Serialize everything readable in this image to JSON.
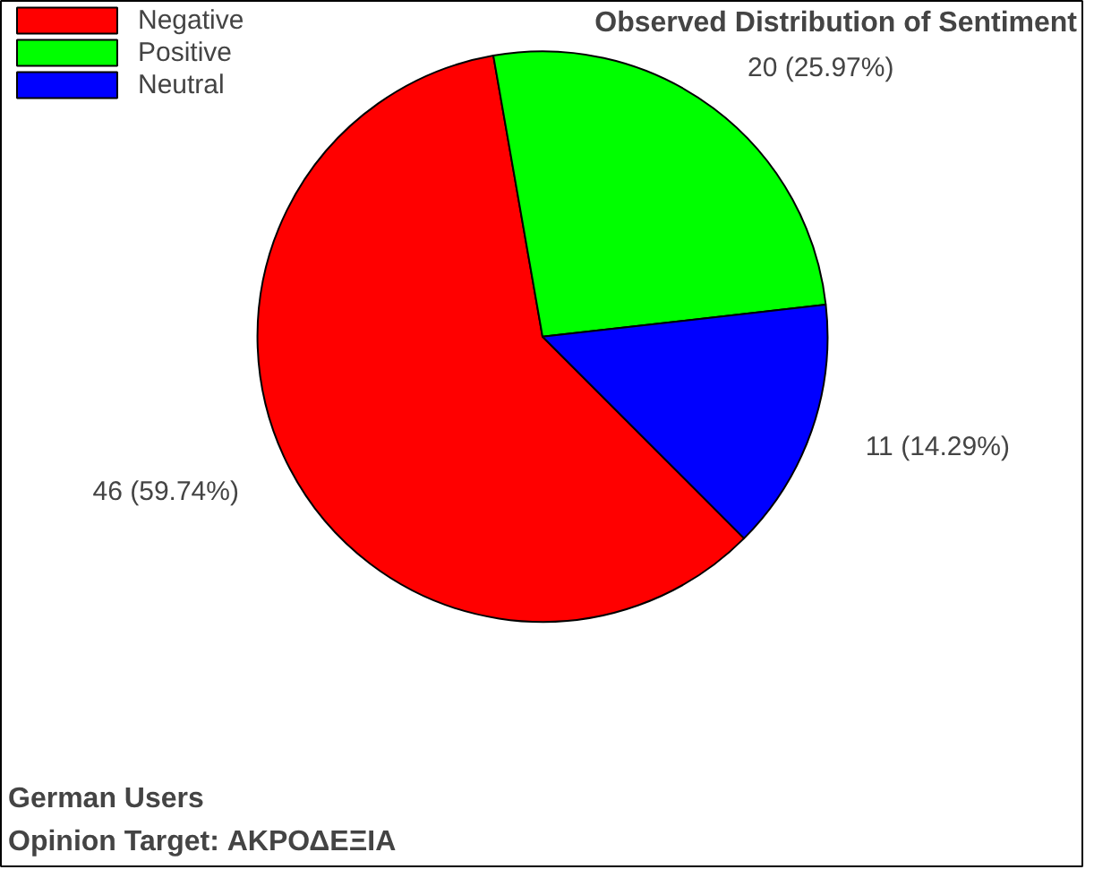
{
  "chart_data": {
    "type": "pie",
    "title": "Observed Distribution of Sentiment",
    "categories": [
      "Negative",
      "Positive",
      "Neutral"
    ],
    "values": [
      46,
      20,
      11
    ],
    "colors": [
      "#ff0000",
      "#00ff00",
      "#0000ff"
    ],
    "value_labels": [
      "46 (59.74%)",
      "20 (25.97%)",
      "11 (14.29%)"
    ],
    "legend": "top left",
    "annotations": [
      "German Users",
      "Opinion Target: ΑΚΡΟΔΕΞΙΑ"
    ]
  }
}
